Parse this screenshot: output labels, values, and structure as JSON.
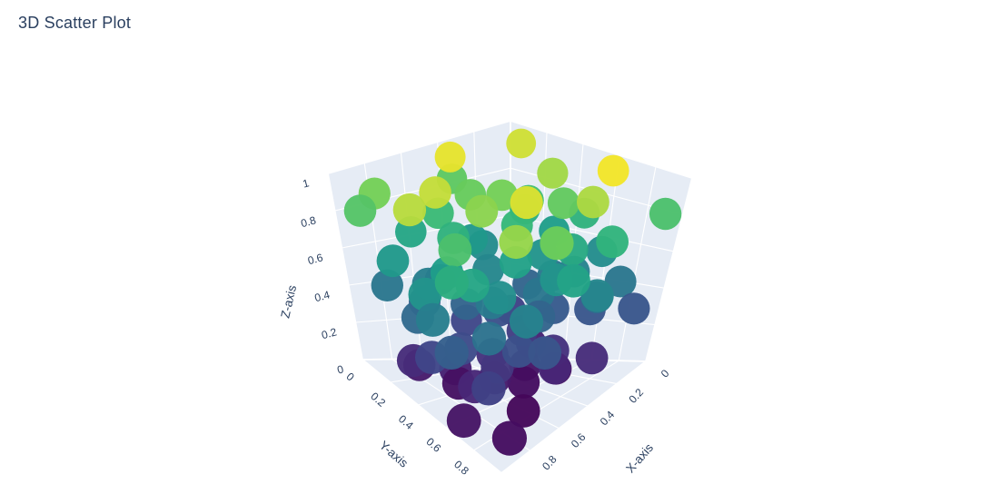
{
  "page": {
    "title": "3D Scatter Plot"
  },
  "chart_data": {
    "type": "scatter3d",
    "title": "3D Scatter Plot",
    "legend": false,
    "grid": true,
    "axes": {
      "x": {
        "label": "X-axis",
        "ticks": [
          0,
          0.2,
          0.4,
          0.6,
          0.8
        ],
        "range": [
          0,
          1
        ]
      },
      "y": {
        "label": "Y-axis",
        "ticks": [
          0,
          0.2,
          0.4,
          0.6,
          0.8
        ],
        "range": [
          0,
          1
        ]
      },
      "z": {
        "label": "Z-axis",
        "ticks": [
          0,
          0.2,
          0.4,
          0.6,
          0.8,
          1
        ],
        "range": [
          0,
          1
        ]
      }
    },
    "color_by": "z",
    "colorscale": {
      "name": "Viridis",
      "stops": [
        [
          0.0,
          "#440154"
        ],
        [
          0.125,
          "#482878"
        ],
        [
          0.25,
          "#3e4989"
        ],
        [
          0.375,
          "#31688e"
        ],
        [
          0.5,
          "#26828e"
        ],
        [
          0.625,
          "#1f9e89"
        ],
        [
          0.75,
          "#35b779"
        ],
        [
          0.875,
          "#6ece58"
        ],
        [
          1.0,
          "#fde725"
        ]
      ]
    },
    "styles": {
      "pane_color": "#e6ecf5",
      "grid_color": "#ffffff",
      "text_color": "#2a3f5f",
      "background": "#ffffff",
      "tick_font_size": 12,
      "axis_title_font_size": 13.5
    },
    "points": [
      [
        0.72,
        0.31,
        0.95
      ],
      [
        0.45,
        0.12,
        0.98
      ],
      [
        0.18,
        0.42,
        0.92
      ],
      [
        0.55,
        0.65,
        0.97
      ],
      [
        0.83,
        0.07,
        0.88
      ],
      [
        0.31,
        0.78,
        0.93
      ],
      [
        0.09,
        0.15,
        0.96
      ],
      [
        0.64,
        0.49,
        0.9
      ],
      [
        0.27,
        0.58,
        0.85
      ],
      [
        0.91,
        0.36,
        0.94
      ],
      [
        0.12,
        0.69,
        0.99
      ],
      [
        0.49,
        0.27,
        0.86
      ],
      [
        0.76,
        0.81,
        0.91
      ],
      [
        0.38,
        0.05,
        0.84
      ],
      [
        0.6,
        0.88,
        0.87
      ],
      [
        0.22,
        0.33,
        0.78
      ],
      [
        0.85,
        0.55,
        0.8
      ],
      [
        0.41,
        0.46,
        0.75
      ],
      [
        0.07,
        0.51,
        0.72
      ],
      [
        0.58,
        0.17,
        0.76
      ],
      [
        0.94,
        0.62,
        0.7
      ],
      [
        0.33,
        0.71,
        0.68
      ],
      [
        0.67,
        0.09,
        0.66
      ],
      [
        0.15,
        0.24,
        0.7
      ],
      [
        0.52,
        0.57,
        0.64
      ],
      [
        0.79,
        0.43,
        0.62
      ],
      [
        0.25,
        0.86,
        0.73
      ],
      [
        0.88,
        0.19,
        0.6
      ],
      [
        0.44,
        0.74,
        0.58
      ],
      [
        0.11,
        0.38,
        0.62
      ],
      [
        0.7,
        0.66,
        0.56
      ],
      [
        0.29,
        0.13,
        0.54
      ],
      [
        0.96,
        0.47,
        0.58
      ],
      [
        0.47,
        0.35,
        0.52
      ],
      [
        0.2,
        0.61,
        0.5
      ],
      [
        0.74,
        0.25,
        0.48
      ],
      [
        0.36,
        0.92,
        0.52
      ],
      [
        0.62,
        0.53,
        0.46
      ],
      [
        0.08,
        0.79,
        0.44
      ],
      [
        0.81,
        0.71,
        0.42
      ],
      [
        0.51,
        0.08,
        0.4
      ],
      [
        0.17,
        0.45,
        0.44
      ],
      [
        0.89,
        0.33,
        0.38
      ],
      [
        0.42,
        0.63,
        0.36
      ],
      [
        0.68,
        0.15,
        0.34
      ],
      [
        0.24,
        0.54,
        0.32
      ],
      [
        0.57,
        0.83,
        0.3
      ],
      [
        0.93,
        0.59,
        0.34
      ],
      [
        0.35,
        0.29,
        0.28
      ],
      [
        0.77,
        0.48,
        0.26
      ],
      [
        0.13,
        0.67,
        0.3
      ],
      [
        0.48,
        0.21,
        0.24
      ],
      [
        0.86,
        0.76,
        0.22
      ],
      [
        0.3,
        0.4,
        0.2
      ],
      [
        0.65,
        0.6,
        0.18
      ],
      [
        0.1,
        0.11,
        0.22
      ],
      [
        0.54,
        0.45,
        0.16
      ],
      [
        0.9,
        0.28,
        0.14
      ],
      [
        0.39,
        0.73,
        0.12
      ],
      [
        0.71,
        0.37,
        0.1
      ],
      [
        0.26,
        0.85,
        0.14
      ],
      [
        0.59,
        0.52,
        0.08
      ],
      [
        0.95,
        0.68,
        0.06
      ],
      [
        0.16,
        0.32,
        0.1
      ],
      [
        0.46,
        0.59,
        0.04
      ],
      [
        0.82,
        0.23,
        0.08
      ],
      [
        0.34,
        0.47,
        0.06
      ],
      [
        0.63,
        0.77,
        0.02
      ],
      [
        0.21,
        0.56,
        0.02
      ],
      [
        0.73,
        0.41,
        0.05
      ],
      [
        0.5,
        0.9,
        0.65
      ],
      [
        0.05,
        0.62,
        0.55
      ],
      [
        0.97,
        0.52,
        0.48
      ],
      [
        0.4,
        0.18,
        0.6
      ],
      [
        0.66,
        0.34,
        0.72
      ],
      [
        0.28,
        0.49,
        0.58
      ],
      [
        0.84,
        0.64,
        0.66
      ],
      [
        0.19,
        0.76,
        0.4
      ],
      [
        0.56,
        0.3,
        0.36
      ],
      [
        0.92,
        0.44,
        0.24
      ],
      [
        0.37,
        0.57,
        0.44
      ],
      [
        0.69,
        0.82,
        0.5
      ],
      [
        0.14,
        0.26,
        0.36
      ],
      [
        0.61,
        0.7,
        0.28
      ],
      [
        0.87,
        0.12,
        0.44
      ],
      [
        0.32,
        0.64,
        0.16
      ],
      [
        0.78,
        0.58,
        0.12
      ],
      [
        0.43,
        0.39,
        0.88
      ],
      [
        0.03,
        0.93,
        0.8
      ],
      [
        0.05,
        0.88,
        0.3
      ],
      [
        0.93,
        0.08,
        0.82
      ],
      [
        0.85,
        0.9,
        0.04
      ]
    ]
  }
}
